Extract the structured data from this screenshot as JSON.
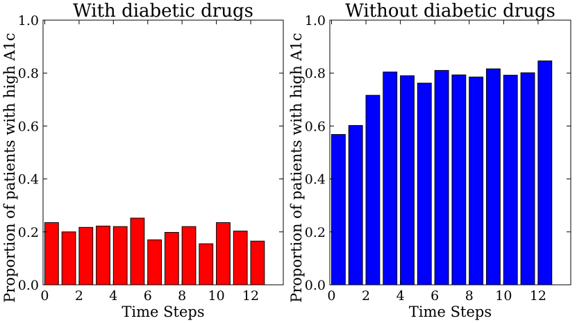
{
  "chart_data": [
    {
      "type": "bar",
      "title": "With diabetic drugs",
      "xlabel": "Time Steps",
      "ylabel": "Proportion of patients with high A1c",
      "x": [
        0,
        1,
        2,
        3,
        4,
        5,
        6,
        7,
        8,
        9,
        10,
        11,
        12
      ],
      "values": [
        0.235,
        0.2,
        0.217,
        0.222,
        0.22,
        0.252,
        0.17,
        0.198,
        0.22,
        0.155,
        0.235,
        0.203,
        0.165
      ],
      "bar_width": 0.8,
      "xlim": [
        -0.1,
        13.9
      ],
      "ylim": [
        0.0,
        1.0
      ],
      "xticks": [
        0,
        2,
        4,
        6,
        8,
        10,
        12
      ],
      "xtick_labels": [
        "0",
        "2",
        "4",
        "6",
        "8",
        "10",
        "12"
      ],
      "yticks": [
        0.0,
        0.2,
        0.4,
        0.6,
        0.8,
        1.0
      ],
      "ytick_labels": [
        "0.0",
        "0.2",
        "0.4",
        "0.6",
        "0.8",
        "1.0"
      ],
      "color": "#ff0000"
    },
    {
      "type": "bar",
      "title": "Without diabetic drugs",
      "xlabel": "Time Steps",
      "ylabel": "Proportion of patients with high A1c",
      "x": [
        0,
        1,
        2,
        3,
        4,
        5,
        6,
        7,
        8,
        9,
        10,
        11,
        12
      ],
      "values": [
        0.568,
        0.602,
        0.716,
        0.804,
        0.79,
        0.762,
        0.81,
        0.793,
        0.785,
        0.816,
        0.792,
        0.801,
        0.846
      ],
      "bar_width": 0.8,
      "xlim": [
        -0.1,
        13.9
      ],
      "ylim": [
        0.0,
        1.0
      ],
      "xticks": [
        0,
        2,
        4,
        6,
        8,
        10,
        12
      ],
      "xtick_labels": [
        "0",
        "2",
        "4",
        "6",
        "8",
        "10",
        "12"
      ],
      "yticks": [
        0.0,
        0.2,
        0.4,
        0.6,
        0.8,
        1.0
      ],
      "ytick_labels": [
        "0.0",
        "0.2",
        "0.4",
        "0.6",
        "0.8",
        "1.0"
      ],
      "color": "#0000ff"
    }
  ]
}
